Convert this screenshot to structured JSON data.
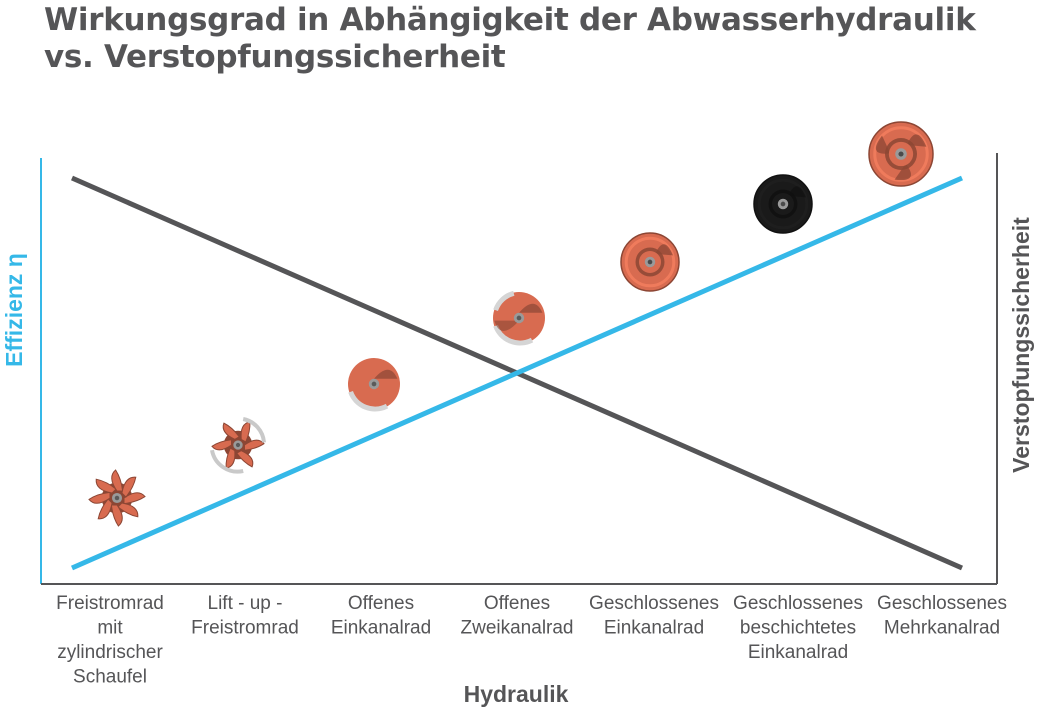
{
  "title_lines": [
    "Wirkungsgrad in Abhängigkeit der Abwasserhydraulik",
    "vs. Verstopfungssicherheit"
  ],
  "chart_data": {
    "type": "line",
    "title": "Wirkungsgrad in Abhängigkeit der Abwasserhydraulik vs. Verstopfungssicherheit",
    "xlabel": "Hydraulik",
    "ylabel_left": "Effizienz η",
    "ylabel_right": "Verstopfungssicherheit",
    "categories": [
      [
        "Freistromrad",
        "mit",
        "zylindrischer",
        "Schaufel"
      ],
      [
        "Lift - up -",
        "Freistromrad"
      ],
      [
        "Offenes",
        "Einkanalrad"
      ],
      [
        "Offenes",
        "Zweikanalrad"
      ],
      [
        "Geschlossenes",
        "Einkanalrad"
      ],
      [
        "Geschlossenes",
        "beschichtetes",
        "Einkanalrad"
      ],
      [
        "Geschlossenes",
        "Mehrkanalrad"
      ]
    ],
    "series": [
      {
        "name": "Effizienz η",
        "values": [
          0,
          1,
          2,
          3,
          4,
          5,
          6
        ],
        "color": "#35b8e8",
        "axis": "left"
      },
      {
        "name": "Verstopfungssicherheit",
        "values": [
          6,
          5,
          4,
          3,
          2,
          1,
          0
        ],
        "color": "#555557",
        "axis": "right"
      }
    ],
    "ylim": [
      0,
      6
    ],
    "axis_ticks": false,
    "grid": false,
    "legend": "none",
    "impeller_icons": [
      {
        "index": 0,
        "style": "open-vortex",
        "color": "#d86b50"
      },
      {
        "index": 1,
        "style": "lift-up-vortex",
        "color": "#d86b50"
      },
      {
        "index": 2,
        "style": "open-single-channel",
        "color": "#d86b50"
      },
      {
        "index": 3,
        "style": "open-two-channel",
        "color": "#d86b50"
      },
      {
        "index": 4,
        "style": "closed-single-channel",
        "color": "#d86b50"
      },
      {
        "index": 5,
        "style": "closed-coated-single-channel",
        "color": "#1a1a1a"
      },
      {
        "index": 6,
        "style": "closed-multi-channel",
        "color": "#d86b50"
      }
    ]
  }
}
